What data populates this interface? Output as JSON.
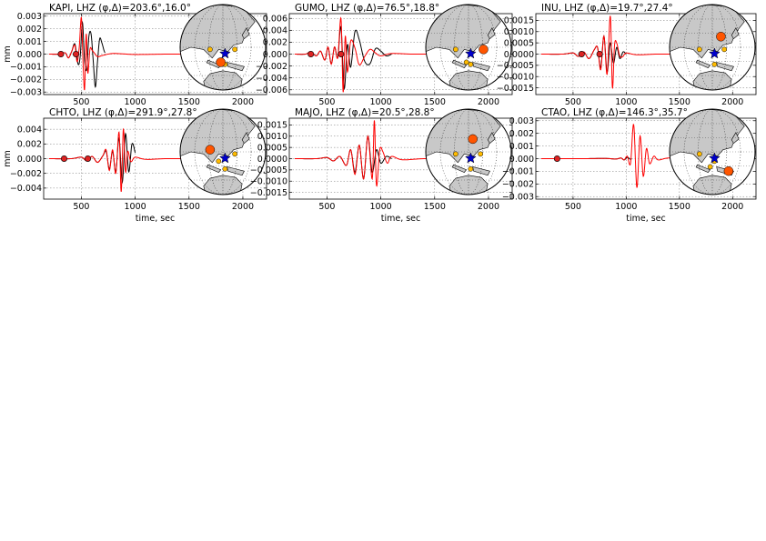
{
  "chart_data": [
    {
      "type": "line",
      "title": "KAPI, LHZ (φ,Δ)=203.6°,16.0°",
      "xlabel": "",
      "ylabel": "mm",
      "xlim": [
        150,
        2220
      ],
      "ylim": [
        -0.0032,
        0.0032
      ],
      "xticks": [
        500,
        1000,
        1500,
        2000
      ],
      "yticks": [
        -0.003,
        -0.002,
        -0.001,
        0.0,
        0.001,
        0.002,
        0.003
      ],
      "yticklabels": [
        "−0.003",
        "−0.002",
        "−0.001",
        "0.000",
        "0.001",
        "0.002",
        "0.003"
      ],
      "xticklabels": [
        "500",
        "1000",
        "1500",
        "2000"
      ],
      "grid": true,
      "series": [
        {
          "color": "#000000",
          "t0": 200,
          "t1": 720,
          "x": [
            200,
            300,
            350,
            380,
            410,
            440,
            470,
            490,
            510,
            530,
            550,
            570,
            590,
            610,
            630,
            650,
            670,
            690,
            710,
            720
          ],
          "y": [
            0,
            0,
            0.0001,
            -0.0003,
            0.0002,
            0.0008,
            -0.0008,
            -0.0001,
            0.0025,
            -0.0005,
            -0.0012,
            0.0014,
            0.0016,
            -0.0005,
            -0.0026,
            -0.0006,
            0.0012,
            0.0009,
            0.0003,
            0.0001
          ]
        },
        {
          "color": "#ff0000",
          "t0": 200,
          "t1": 2100,
          "x": [
            200,
            300,
            350,
            380,
            410,
            440,
            460,
            480,
            500,
            515,
            530,
            545,
            560,
            580,
            600,
            620,
            650,
            700,
            800,
            1000,
            1300,
            1600,
            2100
          ],
          "y": [
            0,
            0,
            0.0001,
            -0.0003,
            0.0002,
            0.0007,
            -0.0006,
            0.0005,
            0.0029,
            -0.0005,
            -0.0028,
            0.0016,
            -0.0015,
            0.0004,
            0.0003,
            0.0001,
            -0.0002,
            -0.0001,
            5e-05,
            -3e-05,
            0,
            0,
            0
          ]
        }
      ],
      "markers": [
        {
          "x": 310,
          "y": 0.0,
          "color": "#dd2222"
        },
        {
          "x": 450,
          "y": 0.0,
          "color": "#dd2222"
        }
      ]
    },
    {
      "type": "line",
      "title": "GUMO, LHZ (φ,Δ)=76.5°,18.8°",
      "xlabel": "",
      "ylabel": "",
      "xlim": [
        150,
        2220
      ],
      "ylim": [
        -0.0068,
        0.0068
      ],
      "xticks": [
        500,
        1000,
        1500,
        2000
      ],
      "yticks": [
        -0.006,
        -0.004,
        -0.002,
        0.0,
        0.002,
        0.004,
        0.006
      ],
      "yticklabels": [
        "−0.006",
        "−0.004",
        "−0.002",
        "0.000",
        "0.002",
        "0.004",
        "0.006"
      ],
      "xticklabels": [
        "500",
        "1000",
        "1500",
        "2000"
      ],
      "grid": true,
      "series": [
        {
          "color": "#000000",
          "t0": 200,
          "t1": 1100,
          "x": [
            200,
            300,
            350,
            400,
            440,
            480,
            510,
            540,
            570,
            600,
            630,
            660,
            690,
            720,
            760,
            800,
            850,
            900,
            950,
            1000,
            1050,
            1100
          ],
          "y": [
            0,
            0,
            0.0004,
            -0.0003,
            0.0005,
            -0.001,
            0.0011,
            -0.0016,
            0.0012,
            -0.0006,
            0.0045,
            -0.0058,
            0.0016,
            -0.0022,
            0.0038,
            0.0024,
            -0.0012,
            -0.0016,
            0.0009,
            0.0005,
            -0.0003,
            0
          ]
        },
        {
          "color": "#ff0000",
          "t0": 200,
          "t1": 2100,
          "x": [
            200,
            300,
            350,
            400,
            440,
            480,
            510,
            540,
            570,
            600,
            630,
            650,
            670,
            690,
            720,
            760,
            800,
            850,
            900,
            950,
            1000,
            1100,
            1300,
            1600,
            2100
          ],
          "y": [
            0,
            0,
            0.0004,
            -0.0003,
            0.0005,
            -0.001,
            0.0012,
            -0.0017,
            0.0012,
            -0.0006,
            0.006,
            -0.0064,
            0.003,
            -0.003,
            0.0022,
            0.001,
            -0.0018,
            -0.0004,
            0.0008,
            0.0002,
            -0.0003,
            0.0001,
            0,
            0,
            0
          ]
        }
      ],
      "markers": [
        {
          "x": 350,
          "y": 0.0,
          "color": "#dd2222"
        },
        {
          "x": 630,
          "y": 0.0,
          "color": "#dd2222"
        }
      ]
    },
    {
      "type": "line",
      "title": "INU, LHZ (φ,Δ)=19.7°,27.4°",
      "xlabel": "",
      "ylabel": "",
      "xlim": [
        150,
        2220
      ],
      "ylim": [
        -0.0018,
        0.0018
      ],
      "xticks": [
        500,
        1000,
        1500,
        2000
      ],
      "yticks": [
        -0.0015,
        -0.001,
        -0.0005,
        0.0,
        0.0005,
        0.001,
        0.0015
      ],
      "yticklabels": [
        "−0.0015",
        "−0.0010",
        "−0.0005",
        "0.0000",
        "0.0005",
        "0.0010",
        "0.0015"
      ],
      "xticklabels": [
        "500",
        "1000",
        "1500",
        "2000"
      ],
      "grid": true,
      "series": [
        {
          "color": "#000000",
          "t0": 200,
          "t1": 1000,
          "x": [
            200,
            400,
            500,
            550,
            600,
            650,
            700,
            730,
            760,
            790,
            820,
            850,
            880,
            910,
            940,
            970,
            1000
          ],
          "y": [
            0,
            0,
            5e-05,
            -0.0001,
            0.0001,
            -0.0002,
            0.0002,
            0.0003,
            -0.0006,
            0.0008,
            -0.0008,
            0.0005,
            -0.0004,
            0.0003,
            -0.0002,
            0.0001,
            0
          ]
        },
        {
          "color": "#ff0000",
          "t0": 200,
          "t1": 2100,
          "x": [
            200,
            400,
            500,
            550,
            600,
            650,
            700,
            730,
            760,
            790,
            820,
            850,
            870,
            890,
            910,
            940,
            970,
            1000,
            1100,
            1300,
            1600,
            2100
          ],
          "y": [
            0,
            0,
            5e-05,
            -0.0001,
            0.0001,
            -0.0002,
            0.0002,
            0.0003,
            -0.0007,
            0.0008,
            -0.0009,
            0.0017,
            -0.0015,
            0.0004,
            0.0005,
            -0.0001,
            -0.0001,
            5e-05,
            -3e-05,
            0,
            0,
            0
          ]
        }
      ],
      "markers": [
        {
          "x": 580,
          "y": 0.0,
          "color": "#dd2222"
        },
        {
          "x": 750,
          "y": 0.0,
          "color": "#dd2222"
        }
      ]
    },
    {
      "type": "line",
      "title": "CHTO, LHZ (φ,Δ)=291.9°,27.8°",
      "xlabel": "time, sec",
      "ylabel": "mm",
      "xlim": [
        150,
        2220
      ],
      "ylim": [
        -0.0055,
        0.0055
      ],
      "xticks": [
        500,
        1000,
        1500,
        2000
      ],
      "yticks": [
        -0.004,
        -0.002,
        0.0,
        0.002,
        0.004
      ],
      "yticklabels": [
        "−0.004",
        "−0.002",
        "0.000",
        "0.002",
        "0.004"
      ],
      "xticklabels": [
        "500",
        "1000",
        "1500",
        "2000"
      ],
      "grid": true,
      "series": [
        {
          "color": "#000000",
          "t0": 200,
          "t1": 1000,
          "x": [
            200,
            400,
            500,
            550,
            600,
            650,
            700,
            730,
            760,
            790,
            820,
            850,
            880,
            910,
            940,
            970,
            1000
          ],
          "y": [
            0,
            0,
            0.0002,
            -0.0003,
            0.0003,
            -0.0005,
            0.0004,
            0.001,
            -0.0014,
            0.001,
            -0.0018,
            0.0028,
            -0.0032,
            0.0034,
            -0.0018,
            0.002,
            0.0008
          ]
        },
        {
          "color": "#ff0000",
          "t0": 200,
          "t1": 2100,
          "x": [
            200,
            400,
            500,
            550,
            600,
            650,
            700,
            730,
            760,
            790,
            820,
            850,
            870,
            890,
            910,
            930,
            960,
            1000,
            1100,
            1300,
            1600,
            2100
          ],
          "y": [
            0,
            0,
            0.0002,
            -0.0003,
            0.0003,
            -0.0005,
            0.0004,
            0.0012,
            -0.0016,
            0.0012,
            -0.002,
            0.0036,
            -0.0045,
            0.004,
            -0.0018,
            0.001,
            -0.0004,
            0.0002,
            -0.0001,
            0,
            0,
            0
          ]
        }
      ],
      "markers": [
        {
          "x": 340,
          "y": 0.0,
          "color": "#dd2222"
        },
        {
          "x": 560,
          "y": 0.0,
          "color": "#dd2222"
        }
      ]
    },
    {
      "type": "line",
      "title": "MAJO, LHZ (φ,Δ)=20.5°,28.8°",
      "xlabel": "time, sec",
      "ylabel": "",
      "xlim": [
        150,
        2220
      ],
      "ylim": [
        -0.0018,
        0.0018
      ],
      "xticks": [
        500,
        1000,
        1500,
        2000
      ],
      "yticks": [
        -0.0015,
        -0.001,
        -0.0005,
        0.0,
        0.0005,
        0.001,
        0.0015
      ],
      "yticklabels": [
        "−0.0015",
        "−0.0010",
        "−0.0005",
        "0.0000",
        "0.0005",
        "0.0010",
        "0.0015"
      ],
      "xticklabels": [
        "500",
        "1000",
        "1500",
        "2000"
      ],
      "grid": true,
      "series": [
        {
          "color": "#000000",
          "t0": 200,
          "t1": 1100,
          "x": [
            200,
            400,
            500,
            560,
            620,
            680,
            720,
            760,
            800,
            840,
            880,
            920,
            960,
            1000,
            1050,
            1100
          ],
          "y": [
            0,
            0,
            5e-05,
            -0.0001,
            0.0001,
            -0.0003,
            0.0004,
            -0.0006,
            0.0006,
            -0.0009,
            0.001,
            -0.0006,
            0.0004,
            -0.0002,
            0.0001,
            0
          ]
        },
        {
          "color": "#ff0000",
          "t0": 200,
          "t1": 2100,
          "x": [
            200,
            400,
            500,
            560,
            620,
            680,
            720,
            760,
            800,
            840,
            880,
            920,
            940,
            960,
            990,
            1020,
            1060,
            1100,
            1200,
            1400,
            1700,
            2100
          ],
          "y": [
            0,
            0,
            5e-05,
            -0.0001,
            0.0001,
            -0.0003,
            0.0004,
            -0.0007,
            0.0006,
            -0.0009,
            0.001,
            -0.0009,
            0.0017,
            -0.0012,
            0.0004,
            0.0003,
            -0.0002,
            0.0001,
            -5e-05,
            0,
            0,
            0
          ]
        }
      ],
      "markers": []
    },
    {
      "type": "line",
      "title": "CTAO, LHZ (φ,Δ)=146.3°,35.7°",
      "xlabel": "time, sec",
      "ylabel": "",
      "xlim": [
        150,
        2220
      ],
      "ylim": [
        -0.0032,
        0.0032
      ],
      "xticks": [
        500,
        1000,
        1500,
        2000
      ],
      "yticks": [
        -0.003,
        -0.002,
        -0.001,
        0.0,
        0.001,
        0.002,
        0.003
      ],
      "yticklabels": [
        "−0.003",
        "−0.002",
        "−0.001",
        "0.000",
        "0.001",
        "0.002",
        "0.003"
      ],
      "xticklabels": [
        "500",
        "1000",
        "1500",
        "2000"
      ],
      "grid": true,
      "series": [
        {
          "color": "#000000",
          "t0": 200,
          "t1": 1050,
          "x": [
            200,
            400,
            600,
            800,
            900,
            950,
            980,
            1010,
            1040,
            1050
          ],
          "y": [
            0,
            0,
            0,
            2e-05,
            -3e-05,
            5e-05,
            -0.0001,
            0.0001,
            -5e-05,
            0
          ]
        },
        {
          "color": "#ff0000",
          "t0": 200,
          "t1": 2100,
          "x": [
            200,
            400,
            600,
            800,
            900,
            950,
            980,
            1010,
            1040,
            1070,
            1100,
            1130,
            1160,
            1190,
            1220,
            1260,
            1300,
            1400,
            1600,
            2100
          ],
          "y": [
            0,
            0,
            0,
            2e-05,
            -3e-05,
            5e-05,
            -0.0001,
            0.0002,
            -0.0004,
            0.0027,
            -0.0023,
            0.0018,
            -0.0014,
            0.0008,
            -0.0004,
            0.0002,
            -0.0001,
            5e-05,
            0,
            0
          ]
        }
      ],
      "markers": [
        {
          "x": 350,
          "y": 0.0,
          "color": "#dd2222"
        }
      ]
    }
  ],
  "maps": [
    {
      "event_color": "#0000cc",
      "station_color": "#ff5500",
      "other_color": "#ffbb00"
    },
    {
      "event_color": "#0000cc",
      "station_color": "#ff5500",
      "other_color": "#ffbb00"
    },
    {
      "event_color": "#0000cc",
      "station_color": "#ff5500",
      "other_color": "#ffbb00"
    },
    {
      "event_color": "#0000cc",
      "station_color": "#ff5500",
      "other_color": "#ffbb00"
    },
    {
      "event_color": "#0000cc",
      "station_color": "#ff5500",
      "other_color": "#ffbb00"
    },
    {
      "event_color": "#0000cc",
      "station_color": "#ff5500",
      "other_color": "#ffbb00"
    }
  ]
}
